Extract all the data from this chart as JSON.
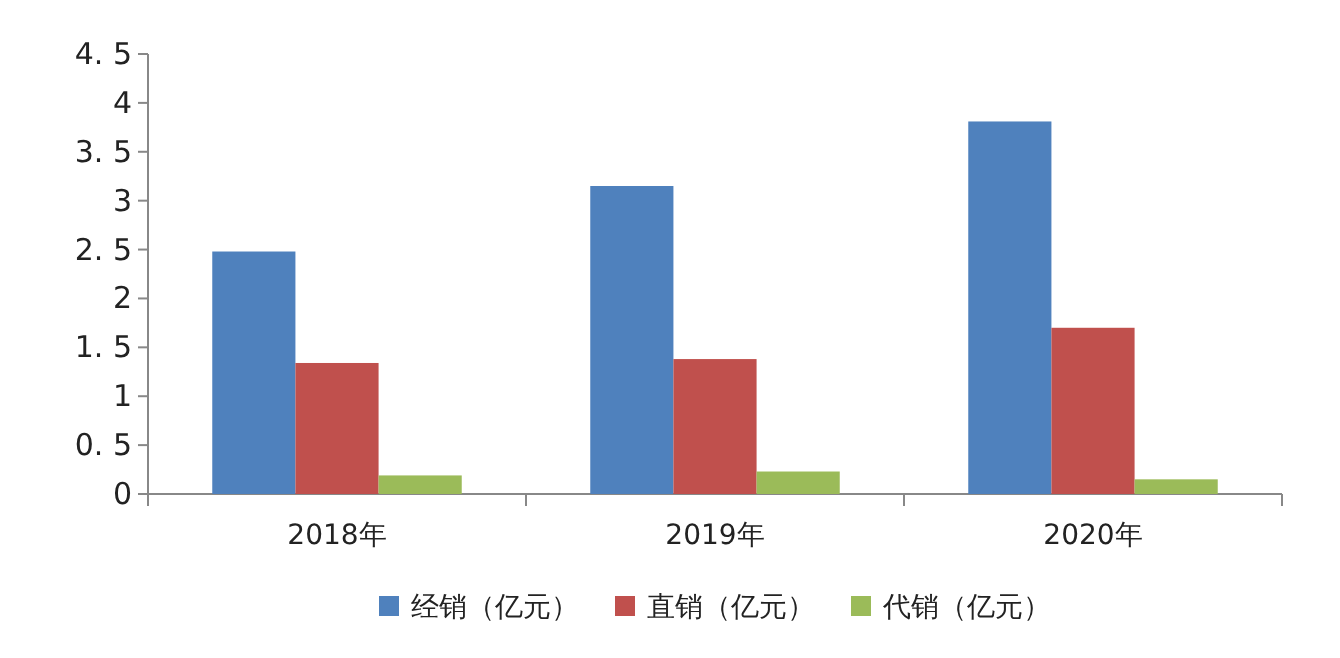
{
  "chart_data": {
    "type": "bar",
    "categories": [
      "2018年",
      "2019年",
      "2020年"
    ],
    "series": [
      {
        "name": "经销（亿元）",
        "color": "#4f81bd",
        "values": [
          2.48,
          3.15,
          3.81
        ]
      },
      {
        "name": "直销（亿元）",
        "color": "#c0504d",
        "values": [
          1.34,
          1.38,
          1.7
        ]
      },
      {
        "name": "代销（亿元）",
        "color": "#9bbb59",
        "values": [
          0.19,
          0.23,
          0.15
        ]
      }
    ],
    "ylim": [
      0,
      4.5
    ],
    "yticks": [
      0,
      {
        "value": 0.5,
        "label": "0. 5"
      },
      1,
      {
        "value": 1.5,
        "label": "1. 5"
      },
      2,
      {
        "value": 2.5,
        "label": "2. 5"
      },
      3,
      {
        "value": 3.5,
        "label": "3. 5"
      },
      4,
      {
        "value": 4.5,
        "label": "4. 5"
      }
    ],
    "grid": false,
    "legend": "bottom"
  }
}
